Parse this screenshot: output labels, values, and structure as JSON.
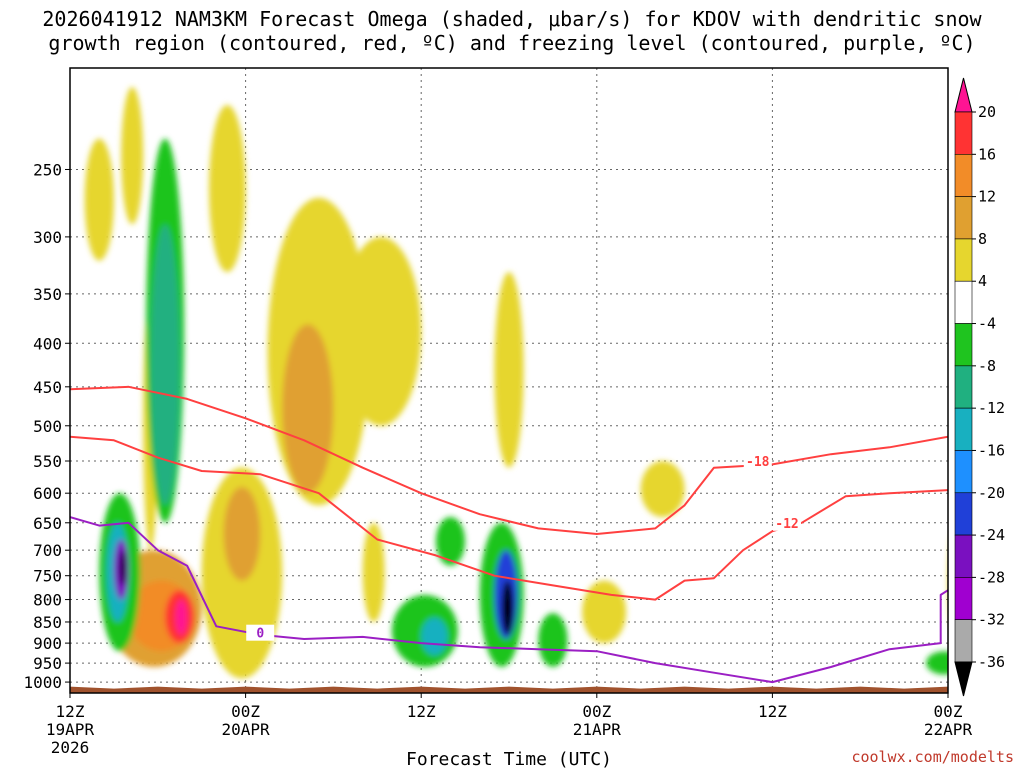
{
  "chart_data": {
    "type": "heatmap",
    "title_line1": "2026041912 NAM3KM Forecast Omega (shaded, μbar/s) for KDOV with dendritic snow",
    "title_line2": "growth region (contoured, red, ºC) and freezing level (contoured, purple, ºC)",
    "xlabel": "Forecast Time (UTC)",
    "watermark": "coolwx.com/modelts",
    "x_range_hours": [
      0,
      60
    ],
    "y_range_hpa": [
      1030,
      190
    ],
    "y_scale": "log-pressure",
    "x_ticks": [
      {
        "hour": 0,
        "label": "12Z",
        "sub": "19APR",
        "sub2": "2026"
      },
      {
        "hour": 12,
        "label": "00Z",
        "sub": "20APR",
        "sub2": ""
      },
      {
        "hour": 24,
        "label": "12Z",
        "sub": "",
        "sub2": ""
      },
      {
        "hour": 36,
        "label": "00Z",
        "sub": "21APR",
        "sub2": ""
      },
      {
        "hour": 48,
        "label": "12Z",
        "sub": "",
        "sub2": ""
      },
      {
        "hour": 60,
        "label": "00Z",
        "sub": "22APR",
        "sub2": ""
      }
    ],
    "y_ticks": [
      250,
      300,
      350,
      400,
      450,
      500,
      550,
      600,
      650,
      700,
      750,
      800,
      850,
      900,
      950,
      1000
    ],
    "colorbar": {
      "levels": [
        "20",
        "16",
        "12",
        "8",
        "4",
        "-4",
        "-8",
        "-12",
        "-16",
        "-20",
        "-24",
        "-28",
        "-32",
        "-36"
      ],
      "colors": [
        "#ff1493",
        "#ff3333",
        "#f28c28",
        "#e0a030",
        "#e6d62e",
        "#ffffff",
        "#1fc41f",
        "#20b080",
        "#18b0c0",
        "#1e90ff",
        "#2040d8",
        "#7a10c0",
        "#a000d0",
        "#aaaaaa",
        "#000000"
      ]
    },
    "omega_areas": [
      {
        "color": "#e6d62e",
        "t": [
          1.0,
          3.0
        ],
        "p": [
          230,
          320
        ]
      },
      {
        "color": "#e6d62e",
        "t": [
          3.5,
          5.0
        ],
        "p": [
          200,
          290
        ]
      },
      {
        "color": "#e6d62e",
        "t": [
          9.5,
          12.0
        ],
        "p": [
          210,
          330
        ]
      },
      {
        "color": "#e6d62e",
        "t": [
          13.5,
          20.5
        ],
        "p": [
          270,
          620
        ]
      },
      {
        "color": "#e6d62e",
        "t": [
          18.5,
          24.0
        ],
        "p": [
          300,
          500
        ]
      },
      {
        "color": "#e6d62e",
        "t": [
          29.0,
          31.0
        ],
        "p": [
          330,
          560
        ]
      },
      {
        "color": "#e6d62e",
        "t": [
          9.0,
          14.5
        ],
        "p": [
          560,
          990
        ]
      },
      {
        "color": "#e6d62e",
        "t": [
          5.0,
          6.0
        ],
        "p": [
          350,
          700
        ]
      },
      {
        "color": "#e6d62e",
        "t": [
          20.0,
          21.5
        ],
        "p": [
          650,
          850
        ]
      },
      {
        "color": "#e6d62e",
        "t": [
          35.0,
          38.0
        ],
        "p": [
          760,
          900
        ]
      },
      {
        "color": "#e6d62e",
        "t": [
          39.0,
          42.0
        ],
        "p": [
          550,
          640
        ]
      },
      {
        "color": "#e6d62e",
        "t": [
          60.0,
          61.0
        ],
        "p": [
          660,
          880
        ]
      },
      {
        "color": "#e0a030",
        "t": [
          14.5,
          18.0
        ],
        "p": [
          380,
          600
        ]
      },
      {
        "color": "#e0a030",
        "t": [
          2.5,
          9.0
        ],
        "p": [
          700,
          960
        ]
      },
      {
        "color": "#e0a030",
        "t": [
          10.5,
          13.0
        ],
        "p": [
          590,
          760
        ]
      },
      {
        "color": "#f28c28",
        "t": [
          4.0,
          8.5
        ],
        "p": [
          760,
          920
        ]
      },
      {
        "color": "#ff3333",
        "t": [
          6.5,
          8.5
        ],
        "p": [
          780,
          900
        ]
      },
      {
        "color": "#ff1493",
        "t": [
          7.2,
          8.0
        ],
        "p": [
          800,
          880
        ]
      },
      {
        "color": "#1fc41f",
        "t": [
          2.0,
          4.8
        ],
        "p": [
          600,
          920
        ]
      },
      {
        "color": "#1fc41f",
        "t": [
          5.2,
          7.8
        ],
        "p": [
          230,
          650
        ]
      },
      {
        "color": "#1fc41f",
        "t": [
          22.0,
          26.5
        ],
        "p": [
          790,
          960
        ]
      },
      {
        "color": "#1fc41f",
        "t": [
          25.0,
          27.0
        ],
        "p": [
          640,
          730
        ]
      },
      {
        "color": "#1fc41f",
        "t": [
          28.0,
          31.0
        ],
        "p": [
          650,
          960
        ]
      },
      {
        "color": "#1fc41f",
        "t": [
          32.0,
          34.0
        ],
        "p": [
          830,
          960
        ]
      },
      {
        "color": "#1fc41f",
        "t": [
          58.5,
          61.0
        ],
        "p": [
          920,
          980
        ]
      },
      {
        "color": "#20b080",
        "t": [
          5.5,
          7.5
        ],
        "p": [
          290,
          620
        ]
      },
      {
        "color": "#18b0c0",
        "t": [
          2.5,
          4.0
        ],
        "p": [
          650,
          850
        ]
      },
      {
        "color": "#18b0c0",
        "t": [
          24.0,
          25.8
        ],
        "p": [
          840,
          930
        ]
      },
      {
        "color": "#2040d8",
        "t": [
          29.0,
          30.6
        ],
        "p": [
          700,
          890
        ]
      },
      {
        "color": "#7a10c0",
        "t": [
          3.0,
          4.0
        ],
        "p": [
          680,
          800
        ]
      },
      {
        "color": "#000000",
        "t": [
          3.4,
          3.8
        ],
        "p": [
          700,
          770
        ]
      },
      {
        "color": "#000000",
        "t": [
          29.5,
          30.3
        ],
        "p": [
          760,
          880
        ]
      }
    ],
    "contours": [
      {
        "name": "dgz-18",
        "color": "#ff4040",
        "label": "-18",
        "label_at": [
          47.0,
          550
        ],
        "points": [
          [
            0,
            453
          ],
          [
            4,
            450
          ],
          [
            8,
            465
          ],
          [
            12,
            490
          ],
          [
            16,
            520
          ],
          [
            20,
            560
          ],
          [
            24,
            600
          ],
          [
            28,
            635
          ],
          [
            32,
            660
          ],
          [
            36,
            670
          ],
          [
            40,
            660
          ],
          [
            42,
            620
          ],
          [
            44,
            560
          ],
          [
            48,
            555
          ],
          [
            52,
            540
          ],
          [
            56,
            530
          ],
          [
            60,
            515
          ]
        ]
      },
      {
        "name": "dgz-12",
        "color": "#ff4040",
        "label": "-12",
        "label_at": [
          49.0,
          650
        ],
        "points": [
          [
            0,
            515
          ],
          [
            3,
            520
          ],
          [
            6,
            545
          ],
          [
            9,
            565
          ],
          [
            13,
            570
          ],
          [
            17,
            600
          ],
          [
            21,
            680
          ],
          [
            25,
            710
          ],
          [
            29,
            750
          ],
          [
            33,
            770
          ],
          [
            37,
            790
          ],
          [
            40,
            800
          ],
          [
            42,
            760
          ],
          [
            44,
            755
          ],
          [
            46,
            700
          ],
          [
            48,
            665
          ],
          [
            50,
            650
          ],
          [
            53,
            605
          ],
          [
            56,
            600
          ],
          [
            60,
            595
          ]
        ]
      },
      {
        "name": "freezing-0",
        "color": "#9b1fc4",
        "label": "0",
        "label_at": [
          13.0,
          875
        ],
        "points": [
          [
            0,
            640
          ],
          [
            2,
            655
          ],
          [
            4,
            650
          ],
          [
            6,
            700
          ],
          [
            8,
            730
          ],
          [
            10,
            860
          ],
          [
            13,
            880
          ],
          [
            16,
            890
          ],
          [
            20,
            885
          ],
          [
            24,
            900
          ],
          [
            28,
            910
          ],
          [
            32,
            915
          ],
          [
            36,
            920
          ],
          [
            40,
            950
          ],
          [
            44,
            975
          ],
          [
            48,
            1000
          ],
          [
            52,
            960
          ],
          [
            56,
            915
          ],
          [
            59.5,
            900
          ],
          [
            59.5,
            790
          ],
          [
            60,
            780
          ]
        ]
      }
    ]
  }
}
